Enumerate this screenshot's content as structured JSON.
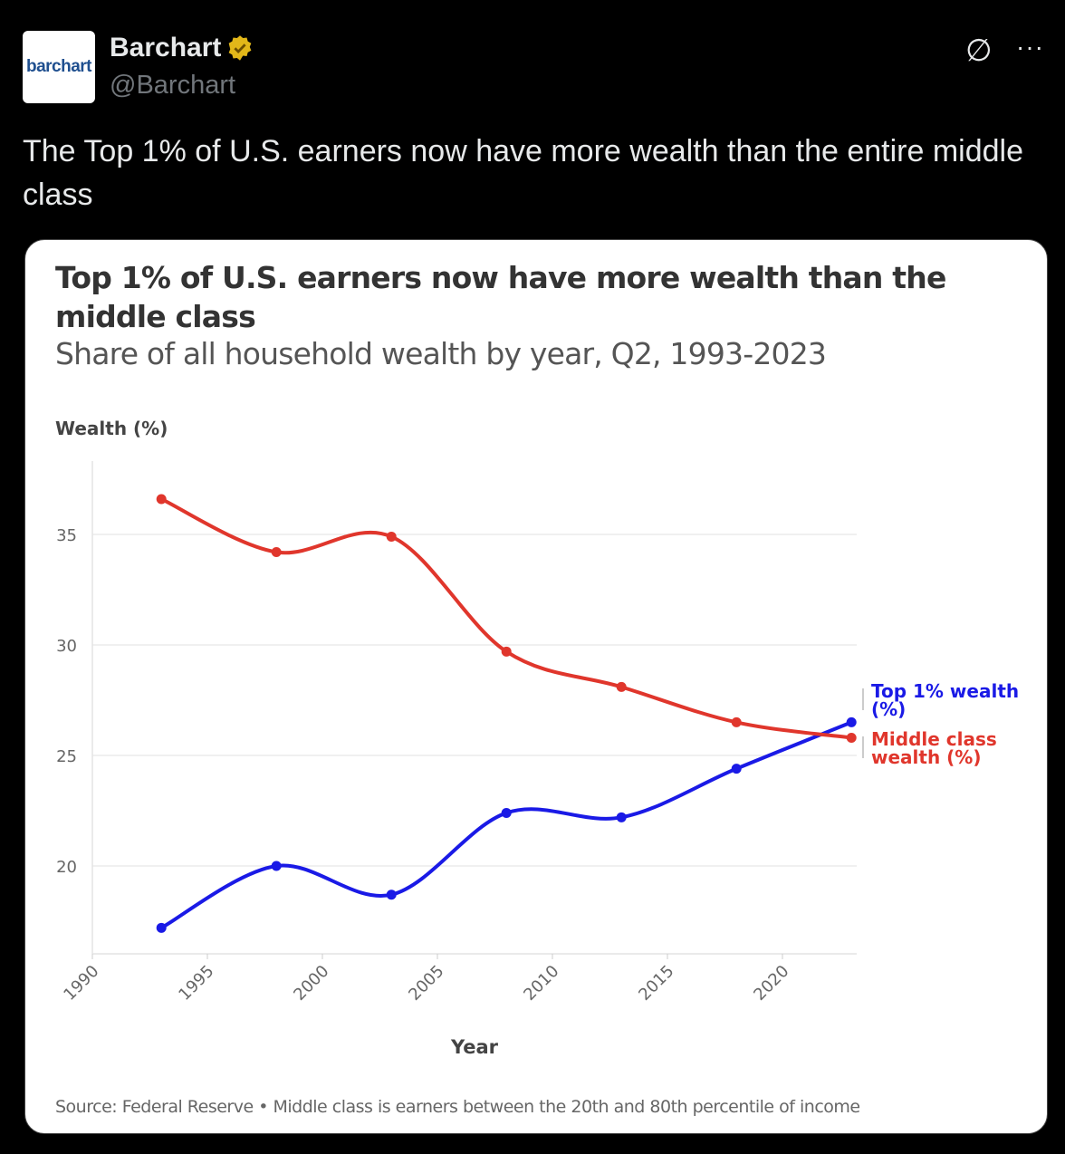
{
  "tweet": {
    "avatar_text": "barchart",
    "display_name": "Barchart",
    "handle": "@Barchart",
    "verified_icon": "gold-verified-badge",
    "grok_icon": "grok-icon",
    "more_icon": "more-icon",
    "text": "The Top 1% of U.S. earners now have more wealth than the entire middle class"
  },
  "chart_data": {
    "type": "line",
    "title": "Top 1% of U.S. earners now have more wealth than the middle class",
    "subtitle": "Share of all household wealth by year, Q2, 1993-2023",
    "ylabel": "Wealth (%)",
    "xlabel": "Year",
    "x": [
      1993,
      1998,
      2003,
      2008,
      2013,
      2018,
      2023
    ],
    "series": [
      {
        "name": "Top 1% wealth (%)",
        "color": "#1a1ae6",
        "values": [
          17.2,
          20.0,
          18.7,
          22.4,
          22.2,
          24.4,
          26.5
        ]
      },
      {
        "name": "Middle class wealth (%)",
        "color": "#e0362c",
        "values": [
          36.6,
          34.2,
          34.9,
          29.7,
          28.1,
          26.5,
          25.8
        ]
      }
    ],
    "xlim": [
      1990,
      2023
    ],
    "ylim": [
      16,
      38.3
    ],
    "xticks": [
      "1990",
      "1995",
      "2000",
      "2005",
      "2010",
      "2015",
      "2020"
    ],
    "yticks": [
      "20",
      "25",
      "30",
      "35"
    ],
    "grid": true,
    "legend": "right, end-of-line labels",
    "source": "Source: Federal Reserve • Middle class is earners between the 20th and 80th percentile of income"
  }
}
